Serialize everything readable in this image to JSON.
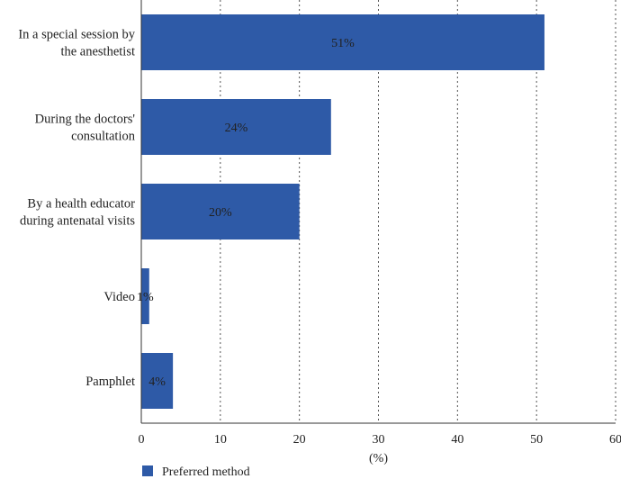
{
  "chart_data": {
    "type": "bar",
    "orientation": "horizontal",
    "categories": [
      [
        "In a special session by",
        "the anesthetist"
      ],
      [
        "During the doctors'",
        "consultation"
      ],
      [
        "By a health educator",
        "during antenatal visits"
      ],
      [
        "Video"
      ],
      [
        "Pamphlet"
      ]
    ],
    "series": [
      {
        "name": "Preferred method",
        "values": [
          51,
          24,
          20,
          1,
          4
        ],
        "labels": [
          "51%",
          "24%",
          "20%",
          "1%",
          "4%"
        ]
      }
    ],
    "xlabel": "(%)",
    "ylabel": "",
    "xlim": [
      0,
      60
    ],
    "xticks": [
      0,
      10,
      20,
      30,
      40,
      50,
      60
    ],
    "grid": "vertical-dotted",
    "legend_position": "bottom-left",
    "colors": {
      "bar": "#2E5AA7",
      "grid": "#555555",
      "axis": "#333333",
      "text": "#222222"
    }
  }
}
